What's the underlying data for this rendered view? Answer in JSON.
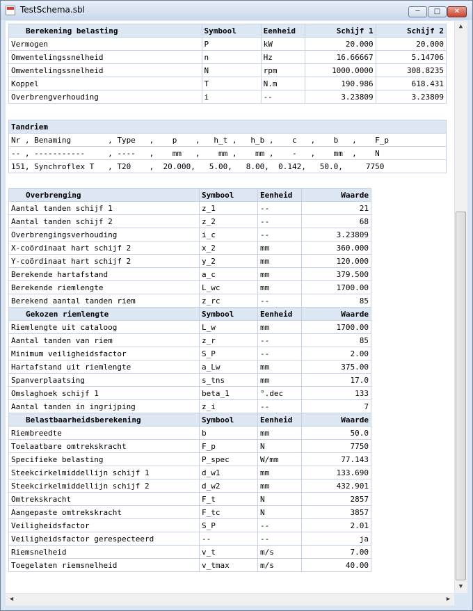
{
  "window": {
    "title": "TestSchema.sbl",
    "minimize": "─",
    "maximize": "□",
    "close": "✕"
  },
  "belasting": {
    "headers": [
      "Berekening belasting",
      "Symbool",
      "Eenheid",
      "Schijf 1",
      "Schijf 2"
    ],
    "rows": [
      [
        "Vermogen",
        "P",
        "kW",
        "20.000",
        "20.000"
      ],
      [
        "Omwentelingssnelheid",
        "n",
        "Hz",
        "16.66667",
        "5.14706"
      ],
      [
        "Omwentelingssnelheid",
        "N",
        "rpm",
        "1000.0000",
        "308.8235"
      ],
      [
        "Koppel",
        "T",
        "N.m",
        "190.986",
        "618.431"
      ],
      [
        "Overbrengverhouding",
        "i",
        "--",
        "3.23809",
        "3.23809"
      ]
    ]
  },
  "tandriem": {
    "title": "Tandriem",
    "lines": [
      "Nr , Benaming        , Type   ,    p    ,   h_t ,   h_b ,    c   ,    b   ,    F_p",
      "-- , -----------     , ----   ,    mm   ,    mm ,    mm ,    -   ,    mm  ,    N",
      "151, Synchroflex T   , T20    ,  20.000,   5.00,   8.00,  0.142,   50.0,     7750"
    ]
  },
  "overbrenging": {
    "sections": [
      {
        "headers": [
          "Overbrenging",
          "Symbool",
          "Eenheid",
          "Waarde"
        ],
        "rows": [
          [
            "Aantal tanden schijf 1",
            "z_1",
            "--",
            "21"
          ],
          [
            "Aantal tanden schijf 2",
            "z_2",
            "--",
            "68"
          ],
          [
            "Overbrengingsverhouding",
            "i_c",
            "--",
            "3.23809"
          ],
          [
            "X-coördinaat hart schijf 2",
            "x_2",
            "mm",
            "360.000"
          ],
          [
            "Y-coördinaat hart schijf 2",
            "y_2",
            "mm",
            "120.000"
          ],
          [
            "Berekende hartafstand",
            "a_c",
            "mm",
            "379.500"
          ],
          [
            "Berekende riemlengte",
            "L_wc",
            "mm",
            "1700.00"
          ],
          [
            "Berekend aantal tanden riem",
            "z_rc",
            "--",
            "85"
          ]
        ]
      },
      {
        "headers": [
          "Gekozen riemlengte",
          "Symbool",
          "Eenheid",
          "Waarde"
        ],
        "rows": [
          [
            "Riemlengte uit cataloog",
            "L_w",
            "mm",
            "1700.00"
          ],
          [
            "Aantal tanden van riem",
            "z_r",
            "--",
            "85"
          ],
          [
            "Minimum veiligheidsfactor",
            "S_P",
            "--",
            "2.00"
          ],
          [
            "Hartafstand uit riemlengte",
            "a_Lw",
            "mm",
            "375.00"
          ],
          [
            "Spanverplaatsing",
            "s_tns",
            "mm",
            "17.0"
          ],
          [
            "Omslaghoek schijf 1",
            "beta_1",
            "°.dec",
            "133"
          ],
          [
            "Aantal tanden in ingrijping",
            "z_i",
            "--",
            "7"
          ]
        ]
      },
      {
        "headers": [
          "Belastbaarheidsberekening",
          "Symbool",
          "Eenheid",
          "Waarde"
        ],
        "rows": [
          [
            "Riembreedte",
            "b",
            "mm",
            "50.0"
          ],
          [
            "Toelaatbare omtrekskracht",
            "F_p",
            "N",
            "7750"
          ],
          [
            "Specifieke belasting",
            "P_spec",
            "W/mm",
            "77.143"
          ],
          [
            "Steekcirkelmiddellijn schijf 1",
            "d_w1",
            "mm",
            "133.690"
          ],
          [
            "Steekcirkelmiddellijn schijf 2",
            "d_w2",
            "mm",
            "432.901"
          ],
          [
            "Omtrekskracht",
            "F_t",
            "N",
            "2857"
          ],
          [
            "Aangepaste omtrekskracht",
            "F_tc",
            "N",
            "3857"
          ],
          [
            "Veiligheidsfactor",
            "S_P",
            "--",
            "2.01"
          ],
          [
            "Veiligheidsfactor gerespecteerd",
            "--",
            "--",
            "ja"
          ],
          [
            "Riemsnelheid",
            "v_t",
            "m/s",
            "7.00"
          ],
          [
            "Toegelaten riemsnelheid",
            "v_tmax",
            "m/s",
            "40.00"
          ]
        ]
      }
    ]
  },
  "scrollbars": {
    "up": "▲",
    "down": "▼",
    "left": "◀",
    "right": "▶"
  }
}
